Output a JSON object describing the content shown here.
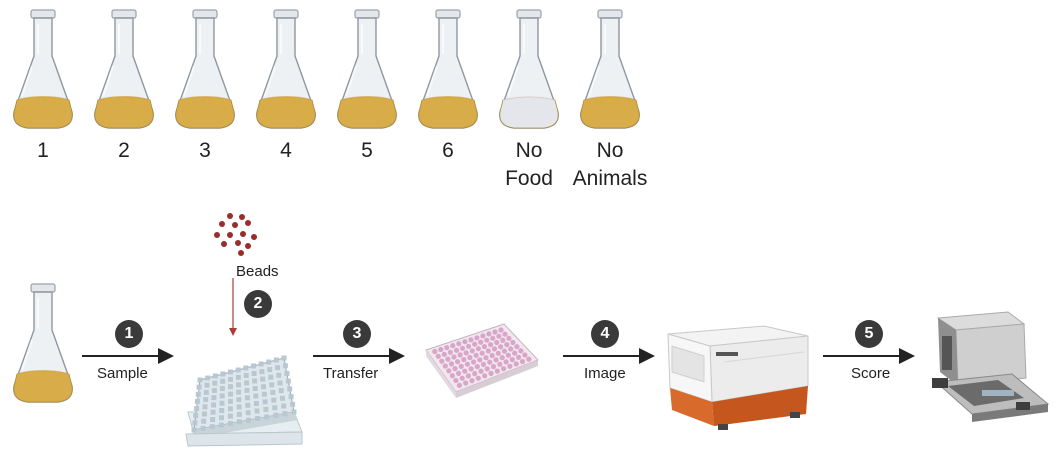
{
  "flasks": [
    {
      "label": "1",
      "media": "food"
    },
    {
      "label": "2",
      "media": "food"
    },
    {
      "label": "3",
      "media": "food"
    },
    {
      "label": "4",
      "media": "food"
    },
    {
      "label": "5",
      "media": "food"
    },
    {
      "label": "6",
      "media": "food"
    },
    {
      "label": "No\nFood",
      "media": "clear"
    },
    {
      "label": "No\nAnimals",
      "media": "food"
    }
  ],
  "beads": {
    "label": "Beads",
    "step": "2"
  },
  "steps": [
    {
      "number": "1",
      "label": "Sample"
    },
    {
      "number": "3",
      "label": "Transfer"
    },
    {
      "number": "4",
      "label": "Image"
    },
    {
      "number": "5",
      "label": "Score"
    }
  ],
  "colors": {
    "food": "#d9ac4a",
    "clear": "#e4e6ec",
    "badge": "#3a3a3a",
    "bead": "#9b2c2c",
    "well_pink": "#d9a5c8",
    "instrument_orange": "#c4561e"
  }
}
